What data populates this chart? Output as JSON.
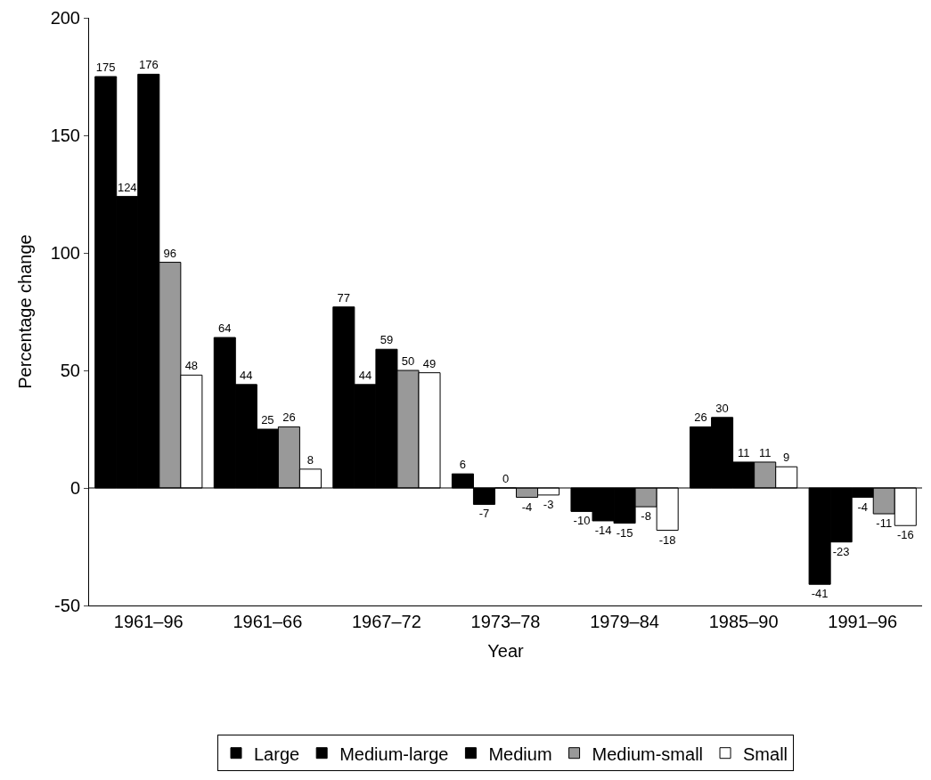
{
  "chart_data": {
    "type": "bar",
    "xlabel": "Year",
    "ylabel": "Percentage change",
    "categories": [
      "1961–96",
      "1961–66",
      "1967–72",
      "1973–78",
      "1979–84",
      "1985–90",
      "1991–96"
    ],
    "series": [
      {
        "name": "Large",
        "color": "#000000",
        "values": [
          175,
          64,
          77,
          6,
          -10,
          26,
          -41
        ]
      },
      {
        "name": "Medium-large",
        "color": "#000000",
        "values": [
          124,
          44,
          44,
          -7,
          -14,
          30,
          -23
        ]
      },
      {
        "name": "Medium",
        "color": "#000000",
        "values": [
          176,
          25,
          59,
          0,
          -15,
          11,
          -4
        ]
      },
      {
        "name": "Medium-small",
        "color": "#999999",
        "values": [
          96,
          26,
          50,
          -4,
          -8,
          11,
          -11
        ]
      },
      {
        "name": "Small",
        "color": "#ffffff",
        "values": [
          48,
          8,
          49,
          -3,
          -18,
          9,
          -16
        ]
      }
    ],
    "ylim": [
      -50,
      200
    ],
    "yticks": [
      -50,
      0,
      50,
      100,
      150,
      200
    ],
    "ref_lines": [
      {
        "axis": "y",
        "value": 0,
        "color": "#000000"
      }
    ],
    "data_labels": true,
    "legend": "bottom"
  }
}
